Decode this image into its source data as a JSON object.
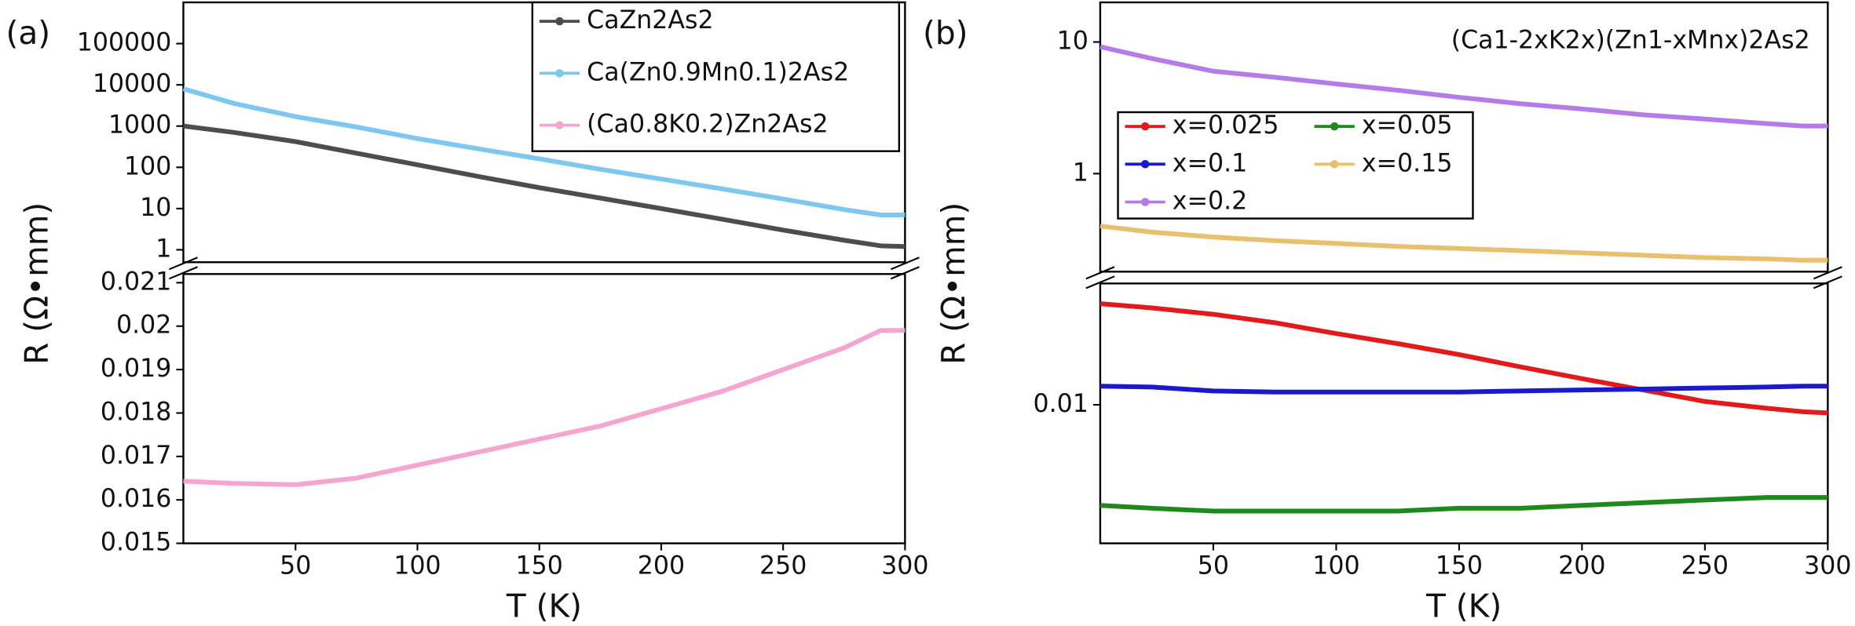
{
  "chart_data": [
    {
      "type": "line",
      "label": "(a)",
      "xlabel": "T (K)",
      "ylabel": "R (Ω•mm)",
      "xlim": [
        4,
        300
      ],
      "xticks": [
        50,
        100,
        150,
        200,
        250,
        300
      ],
      "ylim": [
        0.015,
        0.0212
      ],
      "yticks": [
        0.015,
        0.016,
        0.017,
        0.018,
        0.019,
        0.02,
        0.021
      ],
      "y2lim": [
        0.5,
        1000000
      ],
      "y2ticks": [
        1,
        10,
        100,
        1000,
        10000,
        100000
      ],
      "y2log": true,
      "legend": "upper right",
      "x": [
        4,
        25,
        50,
        75,
        100,
        125,
        150,
        175,
        200,
        225,
        250,
        275,
        290,
        300
      ],
      "series": [
        {
          "name": "CaZn2As2",
          "color": "#4d4d4d",
          "axis": "y2",
          "values": [
            1000,
            700,
            420,
            220,
            115,
            60,
            32,
            18,
            10,
            5.5,
            3,
            1.7,
            1.25,
            1.2
          ]
        },
        {
          "name": "Ca(Zn0.9Mn0.1)2As2",
          "color": "#7ec8f0",
          "axis": "y2",
          "values": [
            8000,
            3500,
            1700,
            950,
            500,
            280,
            160,
            90,
            52,
            30,
            17,
            9.5,
            7,
            7
          ]
        },
        {
          "name": "(Ca0.8K0.2)Zn2As2",
          "color": "#f4a6d0",
          "values": [
            0.01643,
            0.01638,
            0.01635,
            0.0165,
            0.0168,
            0.0171,
            0.0174,
            0.0177,
            0.0181,
            0.0185,
            0.019,
            0.0195,
            0.0199,
            0.0199
          ]
        }
      ]
    },
    {
      "type": "line",
      "label": "(b)",
      "xlabel": "T (K)",
      "ylabel": "R (Ω•mm)",
      "annotation": "(Ca1-2xK2x)(Zn1-xMnx)2As2",
      "xlim": [
        4,
        300
      ],
      "xticks": [
        50,
        100,
        150,
        200,
        250,
        300
      ],
      "ylim": [
        0.00293,
        0.0293
      ],
      "ylog": true,
      "yticks": [
        0.01
      ],
      "y2lim": [
        0.18,
        20
      ],
      "y2ticks": [
        1,
        10
      ],
      "y2log": true,
      "legend": "upper left",
      "x": [
        4,
        25,
        50,
        75,
        100,
        125,
        150,
        175,
        200,
        225,
        250,
        275,
        290,
        300
      ],
      "series": [
        {
          "name": "x=0.025",
          "color": "#e31a1c",
          "values": [
            0.0245,
            0.0236,
            0.0223,
            0.0207,
            0.0188,
            0.0172,
            0.0156,
            0.014,
            0.0126,
            0.0114,
            0.0103,
            0.0097,
            0.0094,
            0.0093
          ]
        },
        {
          "name": "x=0.05",
          "color": "#1e8a1e",
          "values": [
            0.0041,
            0.004,
            0.0039,
            0.0039,
            0.0039,
            0.0039,
            0.004,
            0.004,
            0.0041,
            0.0042,
            0.0043,
            0.0044,
            0.0044,
            0.0044
          ]
        },
        {
          "name": "x=0.1",
          "color": "#1a1acc",
          "values": [
            0.0118,
            0.0117,
            0.0113,
            0.0112,
            0.0112,
            0.0112,
            0.0112,
            0.0113,
            0.0114,
            0.0115,
            0.0116,
            0.0117,
            0.0118,
            0.0118
          ]
        },
        {
          "name": "x=0.15",
          "color": "#e8c070",
          "axis": "y2",
          "values": [
            0.4,
            0.36,
            0.33,
            0.31,
            0.295,
            0.28,
            0.27,
            0.26,
            0.25,
            0.24,
            0.23,
            0.225,
            0.22,
            0.22
          ]
        },
        {
          "name": "x=0.2",
          "color": "#b57be8",
          "axis": "y2",
          "values": [
            9.2,
            7.5,
            6,
            5.4,
            4.8,
            4.3,
            3.8,
            3.4,
            3.1,
            2.8,
            2.6,
            2.4,
            2.3,
            2.3
          ]
        }
      ]
    }
  ]
}
